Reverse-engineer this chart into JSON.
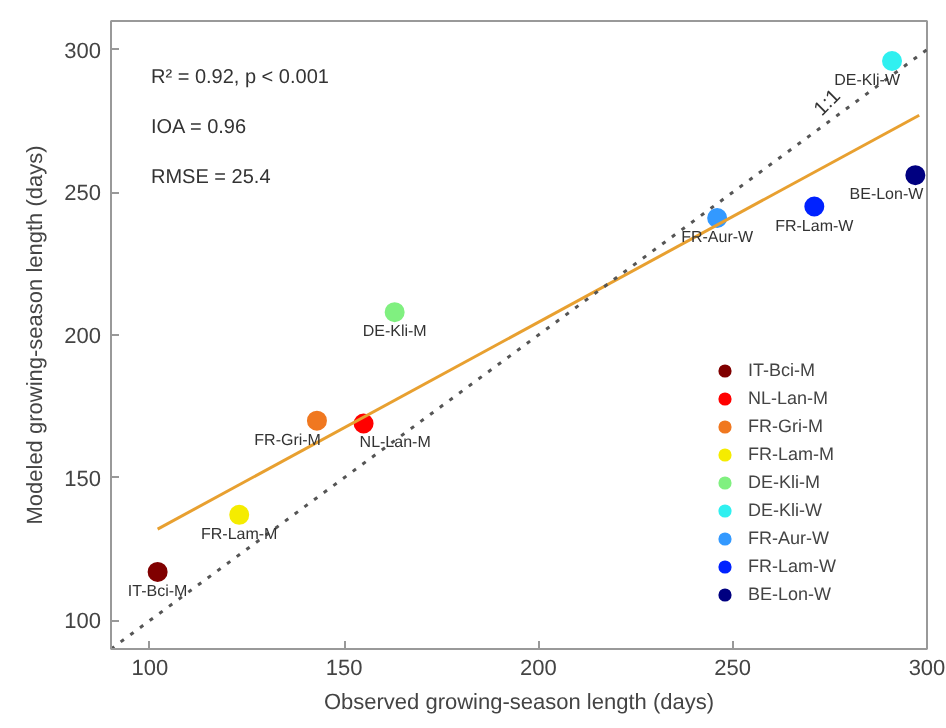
{
  "chart_data": {
    "type": "scatter",
    "xlabel": "Observed growing-season length (days)",
    "ylabel": "Modeled growing-season length (days)",
    "xlim": [
      90,
      300
    ],
    "ylim": [
      90,
      310
    ],
    "xticks": [
      100,
      150,
      200,
      250,
      300
    ],
    "yticks": [
      100,
      150,
      200,
      250,
      300
    ],
    "grid": false,
    "legend": "right",
    "marker": "circle",
    "series": [
      {
        "name": "IT-Bci-M",
        "color": "#800000",
        "x": [
          102
        ],
        "values": [
          117
        ]
      },
      {
        "name": "NL-Lan-M",
        "color": "#ff0000",
        "x": [
          155
        ],
        "values": [
          169
        ]
      },
      {
        "name": "FR-Gri-M",
        "color": "#f07820",
        "x": [
          143
        ],
        "values": [
          170
        ]
      },
      {
        "name": "FR-Lam-M",
        "color": "#f5ec00",
        "x": [
          123
        ],
        "values": [
          137
        ]
      },
      {
        "name": "DE-Kli-M",
        "color": "#80f080",
        "x": [
          163
        ],
        "values": [
          208
        ]
      },
      {
        "name": "DE-Kli-W",
        "color": "#30f0f0",
        "x": [
          291
        ],
        "values": [
          296
        ]
      },
      {
        "name": "FR-Aur-W",
        "color": "#3399ff",
        "x": [
          246
        ],
        "values": [
          241
        ]
      },
      {
        "name": "FR-Lam-W",
        "color": "#0022ff",
        "x": [
          271
        ],
        "values": [
          245
        ]
      },
      {
        "name": "BE-Lon-W",
        "color": "#000080",
        "x": [
          297
        ],
        "values": [
          256
        ]
      },
      {
        "type": "line",
        "color": "#e8a030",
        "x": [
          102,
          298
        ],
        "values": [
          132,
          277
        ],
        "line_style": "solid",
        "marker": "none"
      },
      {
        "type": "line",
        "color": "#555555",
        "x": [
          90,
          300
        ],
        "values": [
          90,
          300
        ],
        "line_style": "dotted",
        "marker": "none"
      }
    ],
    "annotations": [
      "R² = 0.92, p < 0.001",
      "IOA = 0.96",
      "RMSE = 25.4",
      {
        "text": "1:1",
        "x": 274,
        "y": 275
      }
    ]
  }
}
